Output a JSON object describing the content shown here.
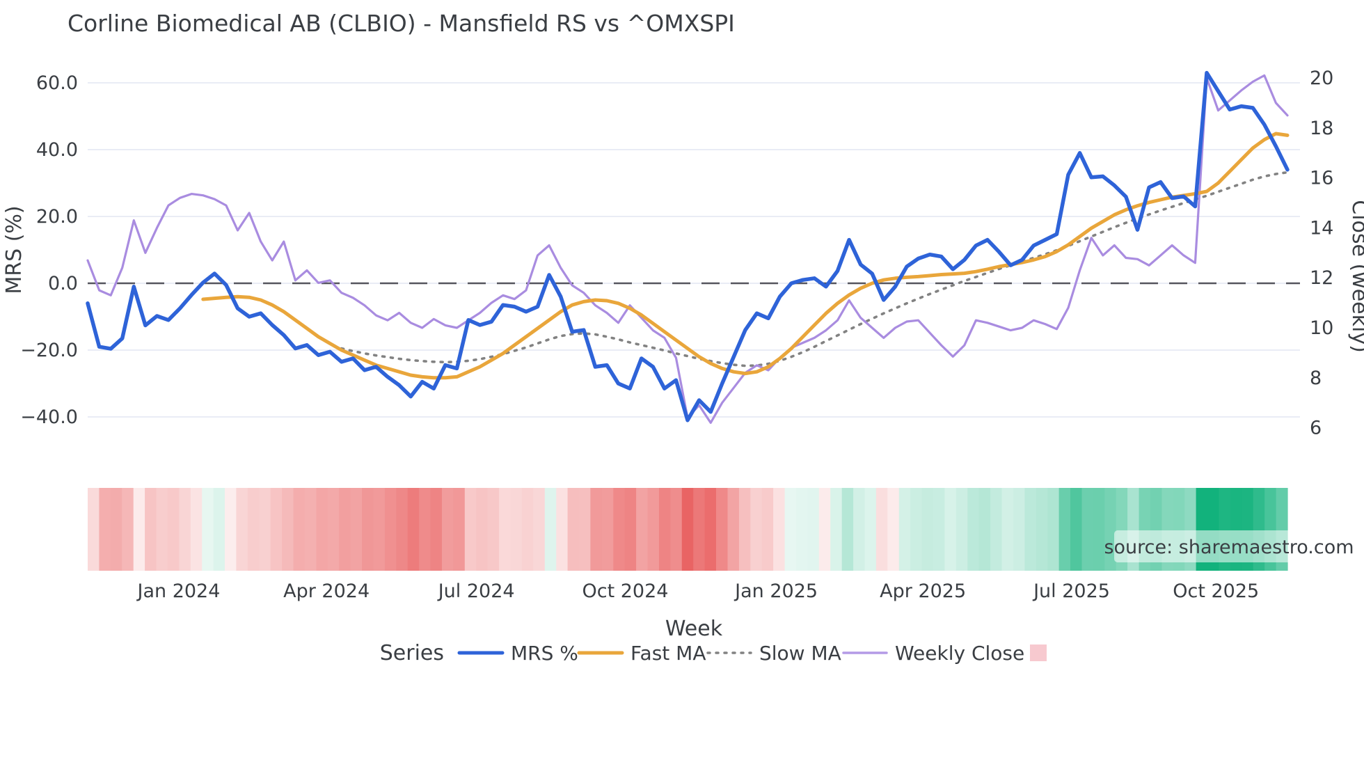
{
  "title": "Corline Biomedical AB (CLBIO) - Mansfield RS vs ^OMXSPI",
  "source_label": "source: sharemaestro.com",
  "axes": {
    "left_label": "MRS (%)",
    "right_label": "Close (weekly)",
    "x_label": "Week",
    "left_ticks": [
      {
        "label": "60.0",
        "value": 60
      },
      {
        "label": "40.0",
        "value": 40
      },
      {
        "label": "20.0",
        "value": 20
      },
      {
        "label": "0.0",
        "value": 0
      },
      {
        "label": "−20.0",
        "value": -20
      },
      {
        "label": "−40.0",
        "value": -40
      }
    ],
    "right_ticks": [
      {
        "label": "20",
        "value": 20
      },
      {
        "label": "18",
        "value": 18
      },
      {
        "label": "16",
        "value": 16
      },
      {
        "label": "14",
        "value": 14
      },
      {
        "label": "12",
        "value": 12
      },
      {
        "label": "10",
        "value": 10
      },
      {
        "label": "8",
        "value": 8
      },
      {
        "label": "6",
        "value": 6
      }
    ],
    "x_ticks": [
      {
        "label": "Jan 2024",
        "week": 7.9
      },
      {
        "label": "Apr 2024",
        "week": 20.7
      },
      {
        "label": "Jul 2024",
        "week": 33.7
      },
      {
        "label": "Oct 2024",
        "week": 46.6
      },
      {
        "label": "Jan 2025",
        "week": 59.7
      },
      {
        "label": "Apr 2025",
        "week": 72.4
      },
      {
        "label": "Jul 2025",
        "week": 85.3
      },
      {
        "label": "Oct 2025",
        "week": 97.8
      }
    ]
  },
  "legend": {
    "heading": "Series",
    "items": [
      {
        "label": "MRS %",
        "swatch": "line",
        "color_key": "mrs"
      },
      {
        "label": "Fast MA",
        "swatch": "line",
        "color_key": "fast_ma"
      },
      {
        "label": "Slow MA",
        "swatch": "dotted",
        "color_key": "slow_ma"
      },
      {
        "label": "Weekly Close",
        "swatch": "line-thin",
        "color_key": "legend_close_swatch"
      },
      {
        "label": "",
        "swatch": "square",
        "color_key": "heat_legend_square"
      }
    ]
  },
  "colors": {
    "mrs": "#2e63d8",
    "fast_ma": "#e9a63b",
    "slow_ma": "#828282",
    "weekly_close": "#a98ce0",
    "legend_close_swatch": "#b49ae6",
    "zero_line": "#55555e",
    "grid": "#e9ecf5",
    "heat_positive": "#12b27c",
    "heat_negative": "#e85a5a",
    "heat_legend_square": "#f7c9cf",
    "source_text": "#8f9390",
    "source_box": "rgba(255,255,255,0.55)",
    "text": "#3a3e43"
  },
  "chart_data": {
    "type": "line",
    "x_unit": "weekly points (Nov 2023 - Nov 2025)",
    "weeks_count": 105,
    "ylim_left": [
      -52,
      71
    ],
    "ylim_right": [
      4.8,
      21.0
    ],
    "zero_reference_line_left_axis": 0,
    "grid": "horizontal-only",
    "legend_position": "bottom",
    "series": [
      {
        "name": "MRS %",
        "axis": "left",
        "values": [
          -6,
          -19,
          -19.6,
          -16.5,
          -1,
          -12.6,
          -9.8,
          -11,
          -7.5,
          -3.5,
          0.2,
          2.9,
          -0.5,
          -7.5,
          -10,
          -9,
          -12.5,
          -15.5,
          -19.5,
          -18.5,
          -21.5,
          -20.5,
          -23.5,
          -22.5,
          -26,
          -25,
          -28,
          -30.5,
          -33.9,
          -29.5,
          -31.5,
          -24.5,
          -25.5,
          -11,
          -12.5,
          -11.5,
          -6.5,
          -7,
          -8.5,
          -7,
          2.5,
          -4,
          -14.5,
          -14,
          -25,
          -24.5,
          -30,
          -31.5,
          -22.5,
          -25,
          -31.5,
          -29,
          -41,
          -35,
          -38.5,
          -30,
          -22,
          -14,
          -9,
          -10.5,
          -4,
          0,
          1,
          1.5,
          -1,
          3.7,
          13,
          5.6,
          2.9,
          -5,
          -1,
          5,
          7.4,
          8.6,
          8,
          4.2,
          7,
          11.3,
          13,
          9.4,
          5.4,
          7,
          11.3,
          13,
          14.7,
          32.5,
          39,
          31.7,
          32,
          29.3,
          25.9,
          16,
          28.7,
          30.3,
          25.5,
          26,
          23,
          63,
          57.5,
          52,
          53,
          52.5,
          47.5,
          41,
          34
        ]
      },
      {
        "name": "Fast MA",
        "axis": "left",
        "values": [
          null,
          null,
          null,
          null,
          null,
          null,
          null,
          null,
          null,
          null,
          -4.8,
          -4.5,
          -4.2,
          -4.0,
          -4.2,
          -5,
          -6.5,
          -8.5,
          -11,
          -13.5,
          -16,
          -18,
          -20,
          -21.5,
          -23,
          -24.5,
          -25.5,
          -26.5,
          -27.5,
          -28,
          -28.3,
          -28.3,
          -28,
          -26.5,
          -25,
          -23,
          -21,
          -18.5,
          -16,
          -13.5,
          -11,
          -8.5,
          -6.5,
          -5.5,
          -5,
          -5.2,
          -6,
          -7.5,
          -9.5,
          -12,
          -14.5,
          -17,
          -19.5,
          -22,
          -24,
          -25.5,
          -26.5,
          -27,
          -26.5,
          -25,
          -22.5,
          -19.5,
          -16,
          -12.5,
          -9,
          -6,
          -3.5,
          -1.5,
          0,
          1,
          1.5,
          1.8,
          2,
          2.3,
          2.6,
          2.8,
          3,
          3.5,
          4.2,
          5,
          5.6,
          6.2,
          7,
          8,
          9.5,
          11.5,
          14,
          16.5,
          18.5,
          20.5,
          22,
          23.2,
          24.2,
          25,
          25.8,
          26.3,
          26.8,
          27.5,
          30,
          33.5,
          37,
          40.5,
          43,
          44.8,
          44.3
        ]
      },
      {
        "name": "Slow MA",
        "axis": "left",
        "values": [
          null,
          null,
          null,
          null,
          null,
          null,
          null,
          null,
          null,
          null,
          null,
          null,
          null,
          null,
          null,
          null,
          null,
          null,
          null,
          null,
          null,
          null,
          -19.5,
          -20.3,
          -21,
          -21.6,
          -22.1,
          -22.6,
          -23,
          -23.3,
          -23.5,
          -23.6,
          -23.5,
          -23.2,
          -22.7,
          -22,
          -21.2,
          -20.2,
          -19.2,
          -18,
          -16.8,
          -15.8,
          -15.2,
          -15,
          -15.3,
          -16,
          -16.8,
          -17.7,
          -18.5,
          -19.3,
          -20.1,
          -21,
          -21.8,
          -22.6,
          -23.3,
          -23.9,
          -24.4,
          -24.7,
          -24.6,
          -24.1,
          -23.2,
          -22,
          -20.6,
          -19,
          -17.3,
          -15.6,
          -13.9,
          -12.2,
          -10.6,
          -9,
          -7.5,
          -6,
          -4.6,
          -3.2,
          -1.9,
          -0.6,
          0.7,
          1.9,
          3.1,
          4.3,
          5.4,
          6.5,
          7.6,
          8.7,
          9.9,
          11.2,
          12.6,
          14,
          15.4,
          16.8,
          18.1,
          19.4,
          20.6,
          21.8,
          22.9,
          24,
          25.1,
          26.2,
          27.4,
          28.6,
          29.8,
          31,
          32,
          32.7,
          33.2
        ]
      },
      {
        "name": "Weekly Close",
        "axis": "right",
        "values": [
          12.7,
          11.5,
          11.3,
          12.4,
          14.3,
          13.0,
          14.0,
          14.9,
          15.2,
          15.36,
          15.3,
          15.15,
          14.9,
          13.9,
          14.6,
          13.45,
          12.7,
          13.45,
          11.9,
          12.3,
          11.8,
          11.9,
          11.4,
          11.2,
          10.9,
          10.5,
          10.3,
          10.6,
          10.2,
          10.0,
          10.35,
          10.1,
          10.0,
          10.3,
          10.6,
          11.0,
          11.3,
          11.15,
          11.5,
          12.9,
          13.3,
          12.4,
          11.7,
          11.4,
          10.9,
          10.6,
          10.2,
          10.9,
          10.4,
          9.9,
          9.6,
          8.8,
          6.4,
          6.9,
          6.2,
          7.0,
          7.6,
          8.2,
          8.5,
          8.3,
          8.8,
          9.2,
          9.4,
          9.6,
          9.9,
          10.3,
          11.1,
          10.4,
          10.0,
          9.6,
          10.0,
          10.25,
          10.3,
          9.8,
          9.3,
          8.85,
          9.3,
          10.3,
          10.2,
          10.05,
          9.9,
          10.0,
          10.3,
          10.15,
          9.95,
          10.8,
          12.3,
          13.6,
          12.9,
          13.3,
          12.8,
          12.75,
          12.5,
          12.9,
          13.3,
          12.9,
          12.6,
          20.0,
          18.7,
          19.1,
          19.5,
          19.85,
          20.1,
          19.0,
          18.5
        ]
      },
      {
        "name": "MRS heat strip",
        "axis": "none",
        "note": "bottom color band encodes weekly MRS % (red negative, green positive)",
        "values": "derived-from-MRS %"
      }
    ]
  }
}
